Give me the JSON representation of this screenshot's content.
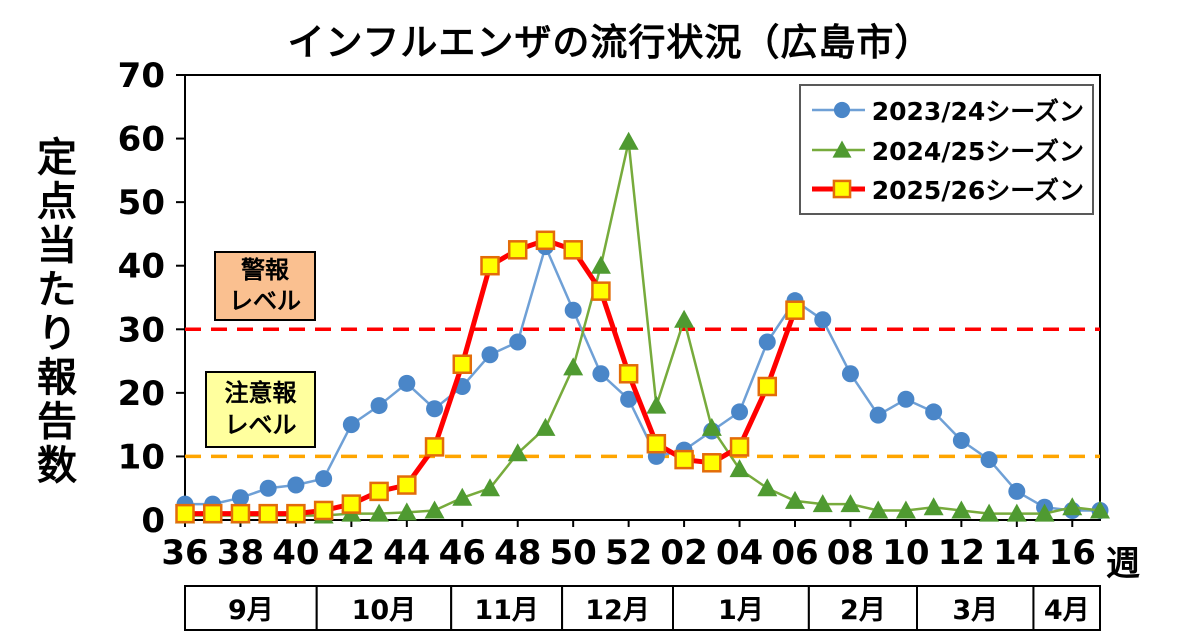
{
  "chart_data": {
    "type": "line",
    "title": "インフルエンザの流行状況（広島市）",
    "ylabel": "定点当たり報告数",
    "xlabel": "週",
    "ylim": [
      0,
      70
    ],
    "yticks": [
      0,
      10,
      20,
      30,
      40,
      50,
      60,
      70
    ],
    "xtick_every": 2,
    "grid": false,
    "legend_position": "top-right",
    "weeks": [
      "36",
      "37",
      "38",
      "39",
      "40",
      "41",
      "42",
      "43",
      "44",
      "45",
      "46",
      "47",
      "48",
      "49",
      "50",
      "51",
      "52",
      "01",
      "02",
      "03",
      "04",
      "05",
      "06",
      "07",
      "08",
      "09",
      "10",
      "11",
      "12",
      "13",
      "14",
      "15",
      "16",
      "17"
    ],
    "months": [
      {
        "label": "9月",
        "span": 4.75
      },
      {
        "label": "10月",
        "span": 4.85
      },
      {
        "label": "11月",
        "span": 4.0
      },
      {
        "label": "12月",
        "span": 4.0
      },
      {
        "label": "1月",
        "span": 4.9
      },
      {
        "label": "2月",
        "span": 3.9
      },
      {
        "label": "3月",
        "span": 4.2
      },
      {
        "label": "4月",
        "span": 2.4
      }
    ],
    "reference_lines": [
      {
        "label": "警報レベル",
        "label_lines": [
          "警報",
          "レベル"
        ],
        "value": 30,
        "line_color": "#ff0000",
        "box_color": "#fac090"
      },
      {
        "label": "注意報レベル",
        "label_lines": [
          "注意報",
          "レベル"
        ],
        "value": 10,
        "line_color": "#ffa500",
        "box_color": "#ffff9e"
      }
    ],
    "series": [
      {
        "id": "2023-24",
        "name": "2023/24シーズン",
        "marker": "circle",
        "color": "#4a86c8",
        "line_color": "#6fa0d6",
        "line_width": 2.5,
        "values": [
          2.5,
          2.5,
          3.5,
          5,
          5.5,
          6.5,
          15,
          18,
          21.5,
          17.5,
          21,
          26,
          28,
          43,
          33,
          23,
          19,
          10,
          11,
          14,
          17,
          28,
          34.5,
          31.5,
          23,
          16.5,
          19,
          17,
          12.5,
          9.5,
          4.5,
          2,
          1.5,
          1.5
        ]
      },
      {
        "id": "2024-25",
        "name": "2024/25シーズン",
        "marker": "triangle",
        "color": "#4f9a31",
        "line_color": "#77ab3c",
        "line_width": 2.5,
        "values": [
          0.7,
          0.7,
          0.7,
          0.7,
          0.7,
          0.7,
          1,
          1,
          1.2,
          1.5,
          3.5,
          5,
          10.5,
          14.5,
          24,
          40,
          59.5,
          18,
          31.5,
          14.5,
          8,
          5,
          3,
          2.5,
          2.5,
          1.5,
          1.5,
          2,
          1.5,
          1,
          1,
          1,
          2,
          1.5
        ]
      },
      {
        "id": "2025-26",
        "name": "2025/26シーズン",
        "marker": "square",
        "color": "#ffff00",
        "marker_border": "#e36c09",
        "line_color": "#ff0000",
        "line_width": 5,
        "values": [
          1,
          1,
          1,
          1,
          1,
          1.5,
          2.5,
          4.5,
          5.5,
          11.5,
          24.5,
          40,
          42.5,
          44,
          42.5,
          36,
          23,
          12,
          9.5,
          9,
          11.5,
          21,
          33
        ]
      }
    ]
  }
}
